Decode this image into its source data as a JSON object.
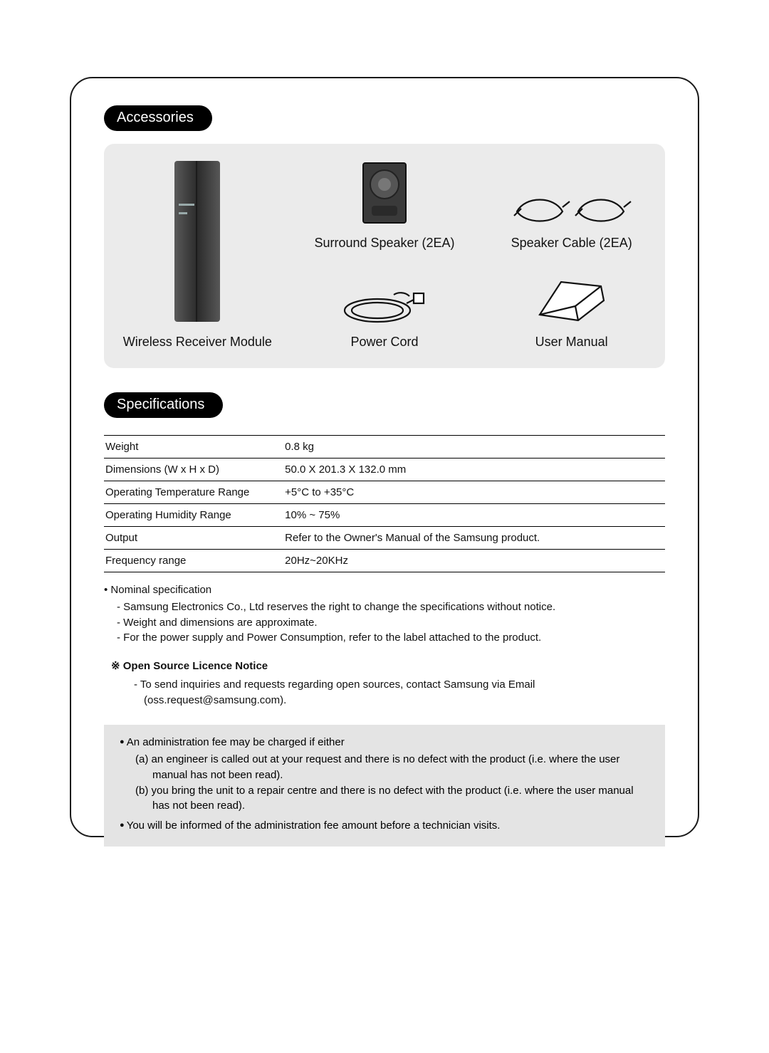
{
  "headings": {
    "accessories": "Accessories",
    "specifications": "Specifications"
  },
  "accessories": {
    "items": {
      "receiver": "Wireless Receiver Module",
      "speaker": "Surround Speaker (2EA)",
      "cable": "Speaker Cable (2EA)",
      "power": "Power Cord",
      "manual": "User Manual"
    }
  },
  "specifications": {
    "rows": [
      {
        "key": "Weight",
        "value": "0.8 kg"
      },
      {
        "key": "Dimensions (W x H x D)",
        "value": "50.0 X 201.3 X 132.0 mm"
      },
      {
        "key": "Operating Temperature Range",
        "value": "+5°C to +35°C"
      },
      {
        "key": "Operating Humidity Range",
        "value": "10% ~ 75%"
      },
      {
        "key": "Output",
        "value": "Refer to the Owner's Manual of the Samsung product."
      },
      {
        "key": "Frequency range",
        "value": "20Hz~20KHz"
      }
    ]
  },
  "notes": {
    "nominal_title": "Nominal specification",
    "nominal": [
      "Samsung Electronics Co., Ltd reserves the right to change the specifications without notice.",
      "Weight and dimensions are approximate.",
      "For the power supply and Power Consumption, refer to the label attached to the product."
    ],
    "oss_heading": "Open Source Licence Notice",
    "oss_item": "To send inquiries and requests regarding open sources, contact Samsung via Email (oss.request@samsung.com)."
  },
  "admin": {
    "intro": "An administration fee may be charged if either",
    "a": "(a)  an engineer is called out at your request and there is no defect with the product (i.e. where the user manual has not been read).",
    "b": "(b)  you bring the unit to a repair centre and there is no defect with the product (i.e. where the user manual has not been read).",
    "inform": "You will be informed of the administration fee amount before a technician visits."
  },
  "colors": {
    "frame_border": "#1a1a1a",
    "pill_bg": "#000000",
    "pill_fg": "#ffffff",
    "panel_bg": "#ebebeb",
    "admin_bg": "#e4e4e4",
    "text": "#111111",
    "page_bg": "#ffffff"
  },
  "typography": {
    "heading_fontsize": 20,
    "label_fontsize": 18,
    "body_fontsize": 15
  }
}
